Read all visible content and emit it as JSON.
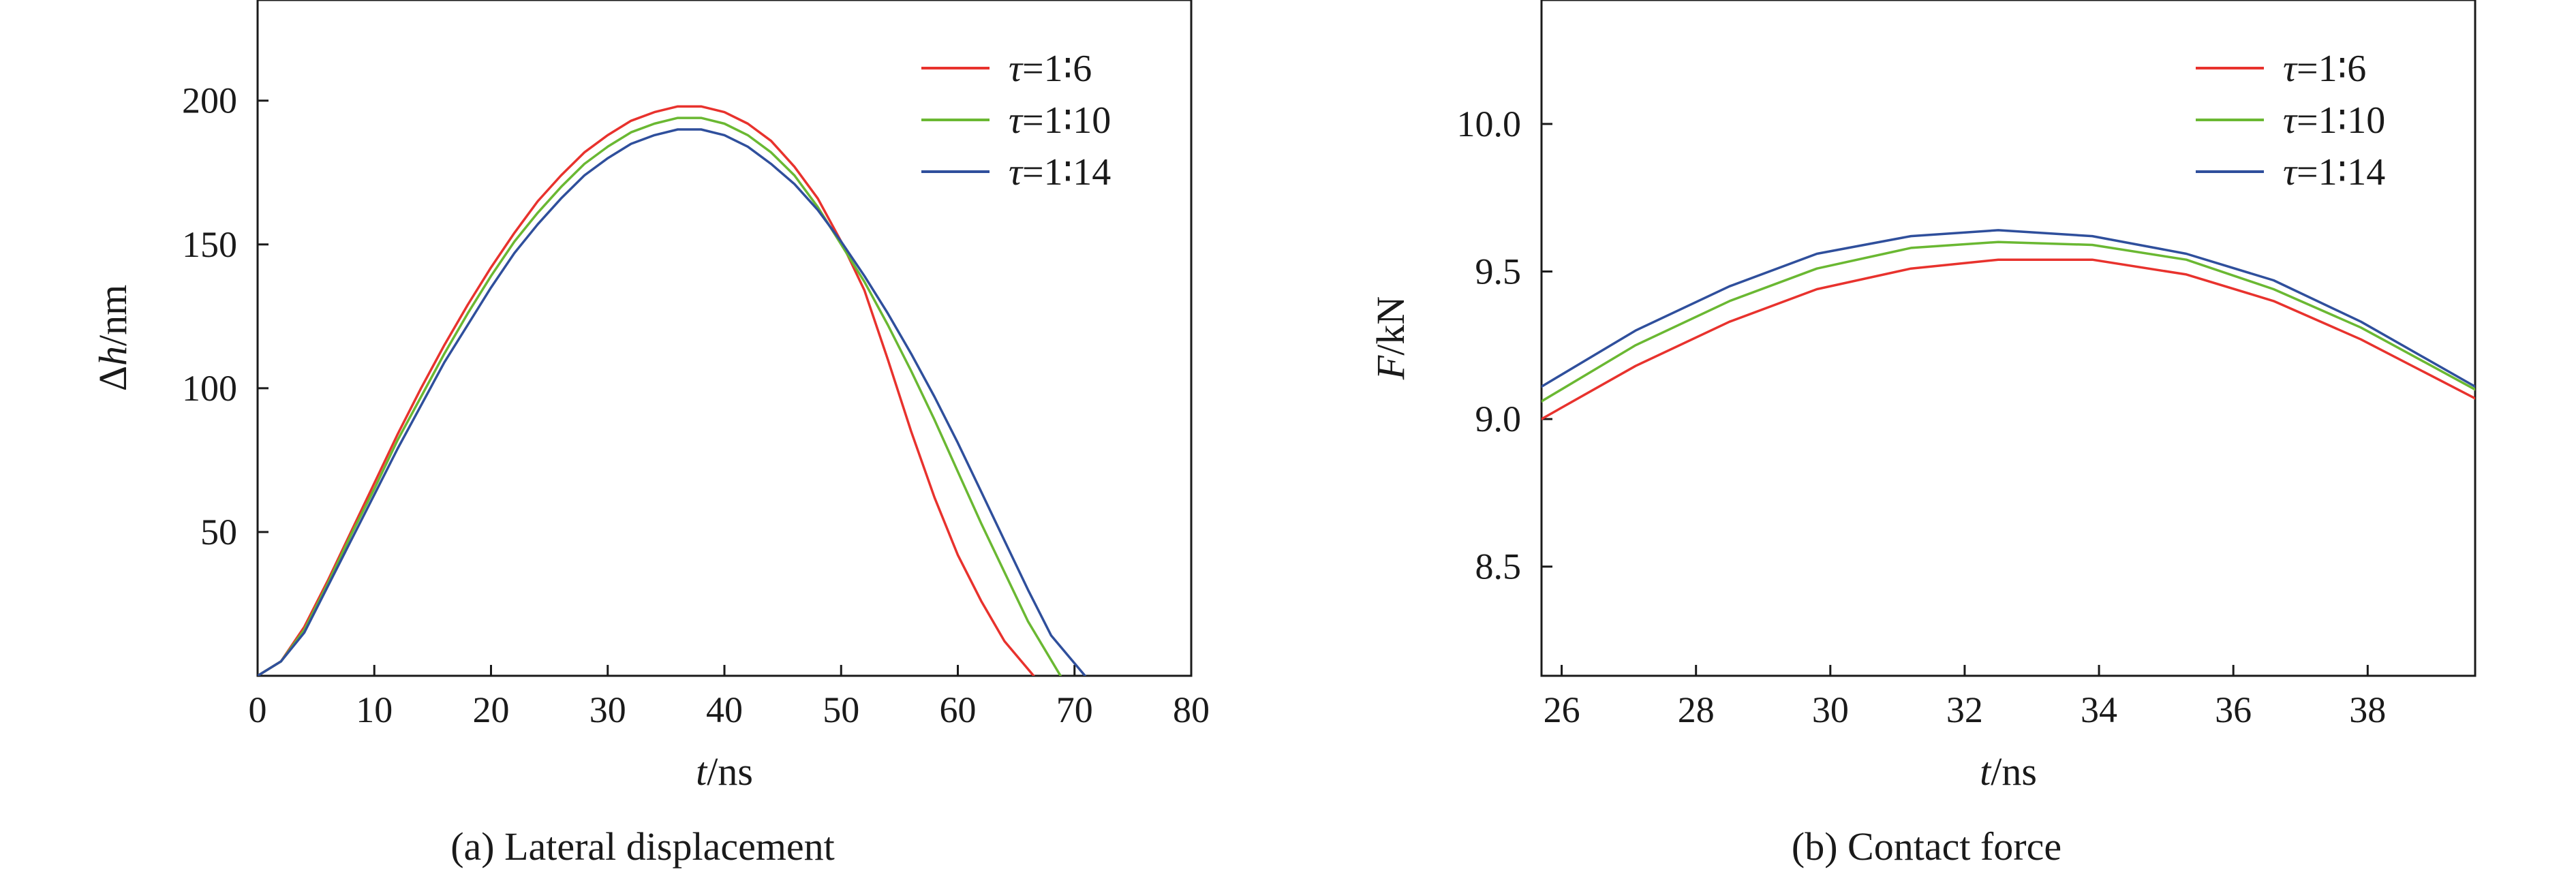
{
  "chart_data": [
    {
      "type": "line",
      "caption": "(a) Lateral displacement",
      "xlabel": {
        "italic": "t",
        "rest": "/ns"
      },
      "ylabel": {
        "prefix": "Δ",
        "italic": "h",
        "rest": "/nm"
      },
      "xlim": [
        0,
        80
      ],
      "ylim": [
        0,
        235
      ],
      "xticks": [
        0,
        10,
        20,
        30,
        40,
        50,
        60,
        70,
        80
      ],
      "xtick_labels": [
        "0",
        "10",
        "20",
        "30",
        "40",
        "50",
        "60",
        "70",
        "80"
      ],
      "yticks": [
        50,
        100,
        150,
        200
      ],
      "ytick_labels": [
        "50",
        "100",
        "150",
        "200"
      ],
      "grid": false,
      "legend_position": "top-right",
      "series": [
        {
          "name": {
            "italic": "τ",
            "rest": "=1∶6"
          },
          "color": "#e8322d",
          "x": [
            0,
            2,
            4,
            6,
            8,
            10,
            12,
            14,
            16,
            18,
            20,
            22,
            24,
            26,
            28,
            30,
            32,
            34,
            36,
            38,
            40,
            42,
            44,
            46,
            48,
            50,
            52,
            54,
            56,
            58,
            60,
            62,
            64,
            66.5
          ],
          "y": [
            0,
            5,
            17,
            33,
            50,
            67,
            84,
            100,
            115,
            129,
            142,
            154,
            165,
            174,
            182,
            188,
            193,
            196,
            198,
            198,
            196,
            192,
            186,
            177,
            166,
            151,
            134,
            110,
            85,
            62,
            42,
            26,
            12,
            0
          ]
        },
        {
          "name": {
            "italic": "τ",
            "rest": "=1∶10"
          },
          "color": "#6ab832",
          "x": [
            0,
            2,
            4,
            6,
            8,
            10,
            12,
            14,
            16,
            18,
            20,
            22,
            24,
            26,
            28,
            30,
            32,
            34,
            36,
            38,
            40,
            42,
            44,
            46,
            48,
            50,
            52,
            54,
            56,
            58,
            60,
            62,
            64,
            66,
            68.8
          ],
          "y": [
            0,
            5,
            16,
            32,
            49,
            65,
            82,
            97,
            112,
            126,
            139,
            151,
            161,
            170,
            178,
            184,
            189,
            192,
            194,
            194,
            192,
            188,
            182,
            174,
            163,
            150,
            137,
            122,
            106,
            89,
            71,
            53,
            36,
            19,
            0
          ]
        },
        {
          "name": {
            "italic": "τ",
            "rest": "=1∶14"
          },
          "color": "#2f4f9c",
          "x": [
            0,
            2,
            4,
            6,
            8,
            10,
            12,
            14,
            16,
            18,
            20,
            22,
            24,
            26,
            28,
            30,
            32,
            34,
            36,
            38,
            40,
            42,
            44,
            46,
            48,
            50,
            52,
            54,
            56,
            58,
            60,
            62,
            64,
            66,
            68,
            70.9
          ],
          "y": [
            0,
            5,
            15,
            31,
            47,
            63,
            79,
            94,
            109,
            122,
            135,
            147,
            157,
            166,
            174,
            180,
            185,
            188,
            190,
            190,
            188,
            184,
            178,
            171,
            162,
            151,
            139,
            126,
            112,
            97,
            81,
            64,
            47,
            30,
            14,
            0
          ]
        }
      ]
    },
    {
      "type": "line",
      "caption": "(b)  Contact force",
      "xlabel": {
        "italic": "t",
        "rest": "/ns"
      },
      "ylabel": {
        "prefix": "",
        "italic": "F",
        "rest": "/kN"
      },
      "xlim": [
        25.7,
        39.6
      ],
      "ylim": [
        8.13,
        10.42
      ],
      "xticks": [
        26,
        28,
        30,
        32,
        34,
        36,
        38
      ],
      "xtick_labels": [
        "26",
        "28",
        "30",
        "32",
        "34",
        "36",
        "38"
      ],
      "yticks": [
        8.5,
        9.0,
        9.5,
        10.0
      ],
      "ytick_labels": [
        "8.5",
        "9.0",
        "9.5",
        "10.0"
      ],
      "grid": false,
      "legend_position": "top-right",
      "series": [
        {
          "name": {
            "italic": "τ",
            "rest": "=1∶6"
          },
          "color": "#e8322d",
          "x": [
            25.7,
            27.1,
            28.5,
            29.8,
            31.2,
            32.5,
            33.9,
            35.3,
            36.6,
            37.9,
            39.6
          ],
          "y": [
            9.0,
            9.18,
            9.33,
            9.44,
            9.51,
            9.54,
            9.54,
            9.49,
            9.4,
            9.27,
            9.07
          ]
        },
        {
          "name": {
            "italic": "τ",
            "rest": "=1∶10"
          },
          "color": "#6ab832",
          "x": [
            25.7,
            27.1,
            28.5,
            29.8,
            31.2,
            32.5,
            33.9,
            35.3,
            36.6,
            37.9,
            39.6
          ],
          "y": [
            9.06,
            9.25,
            9.4,
            9.51,
            9.58,
            9.6,
            9.59,
            9.54,
            9.44,
            9.31,
            9.1
          ]
        },
        {
          "name": {
            "italic": "τ",
            "rest": "=1∶14"
          },
          "color": "#2f4f9c",
          "x": [
            25.7,
            27.1,
            28.5,
            29.8,
            31.2,
            32.5,
            33.9,
            35.3,
            36.6,
            37.9,
            39.6
          ],
          "y": [
            9.11,
            9.3,
            9.45,
            9.56,
            9.62,
            9.64,
            9.62,
            9.56,
            9.47,
            9.33,
            9.11
          ]
        }
      ]
    }
  ]
}
